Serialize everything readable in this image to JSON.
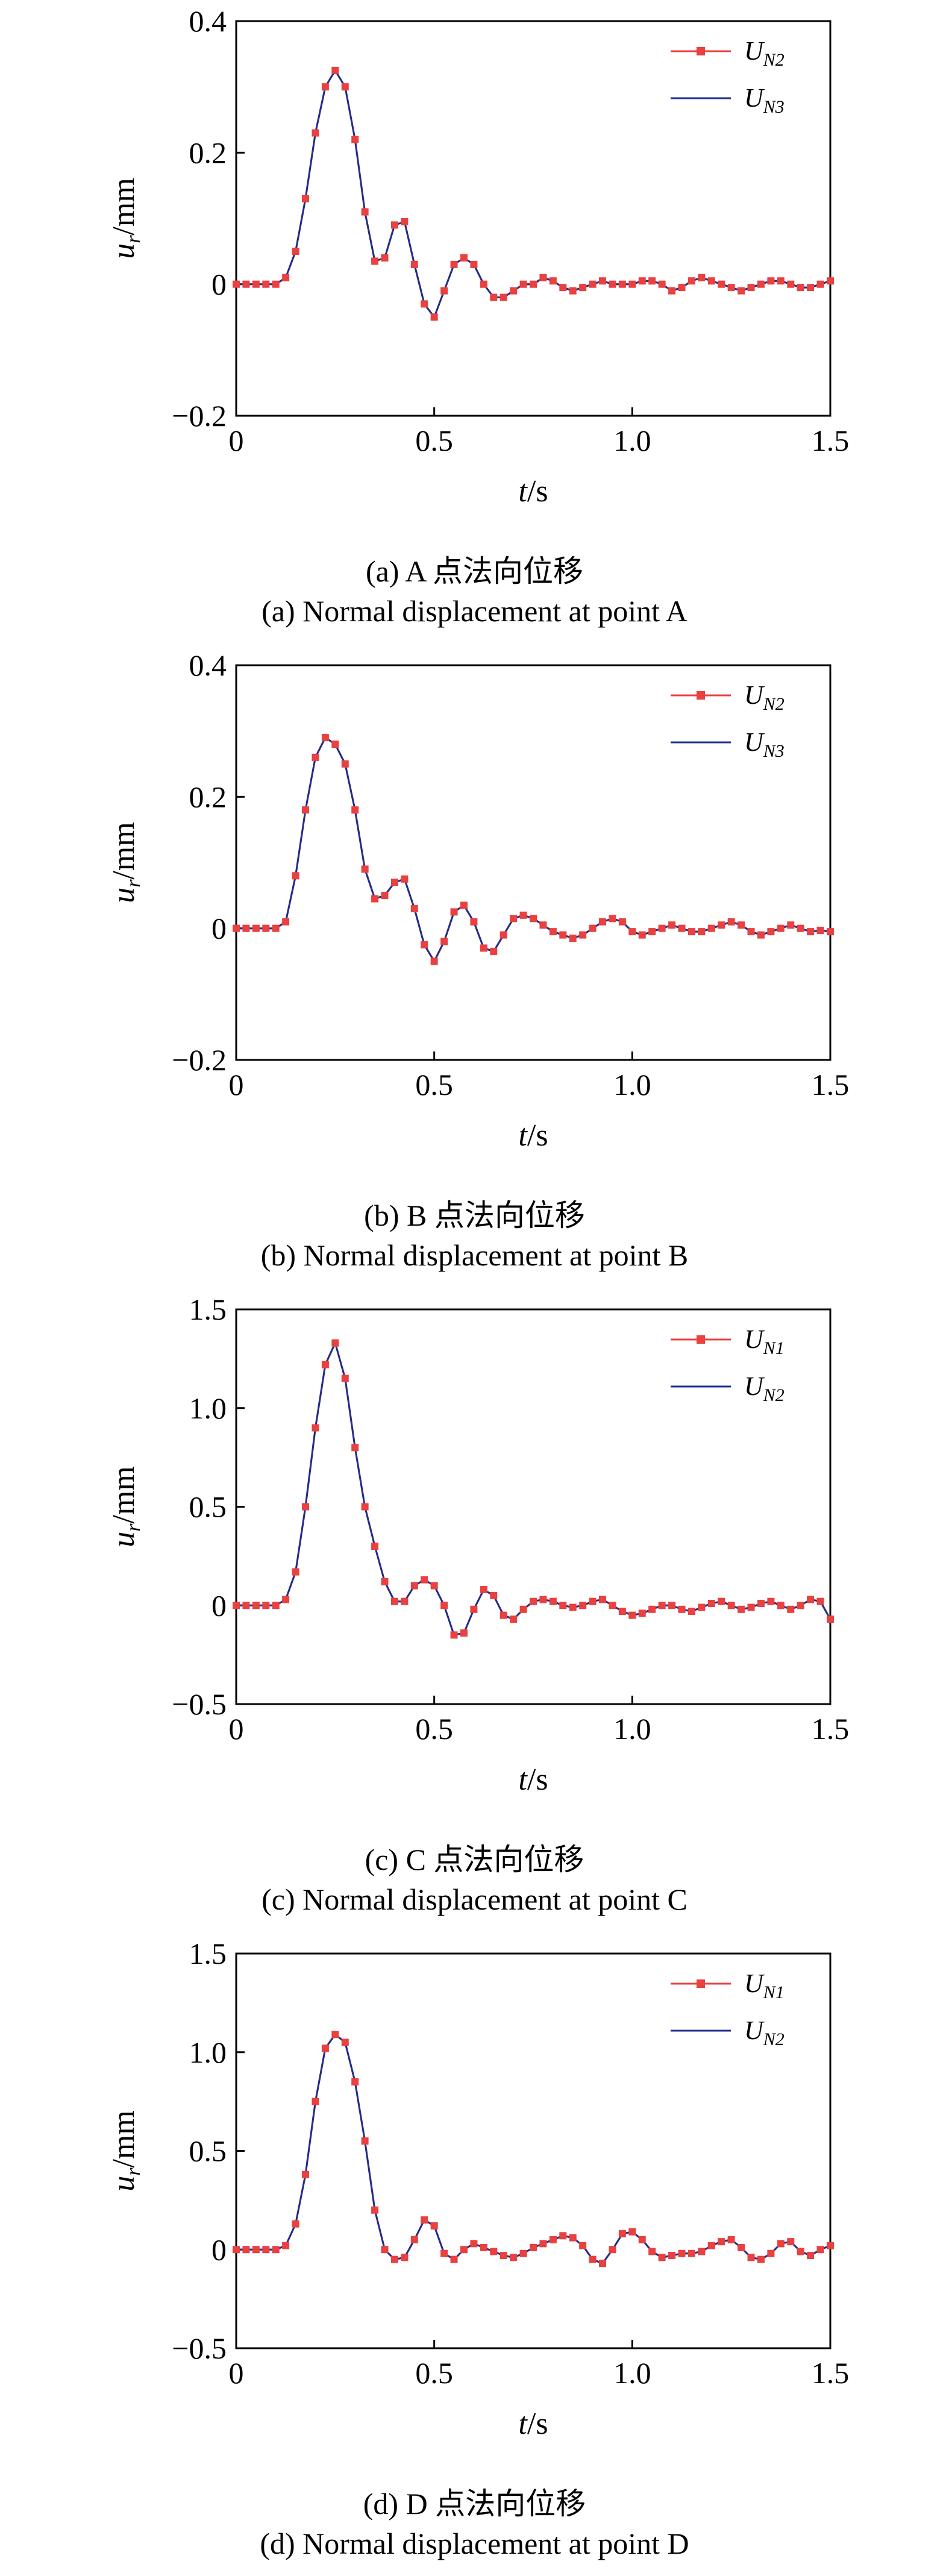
{
  "chart_data": [
    {
      "type": "line",
      "xlabel": "t/s",
      "ylabel": "u_r/mm",
      "xlim": [
        0,
        1.5
      ],
      "ylim": [
        -0.2,
        0.4
      ],
      "xticks": [
        "0",
        "0.5",
        "1.0",
        "1.5"
      ],
      "yticks": [
        "−0.2",
        "0",
        "0.2",
        "0.4"
      ],
      "legend": "top-right",
      "caption_cn": "(a) A 点法向位移",
      "caption_en": "(a) Normal displacement at point A",
      "series": [
        {
          "name": "U_N2",
          "color": "#e8413f",
          "marker": "square"
        },
        {
          "name": "U_N3",
          "color": "#1f2e8c",
          "marker": "none"
        }
      ],
      "x": [
        0,
        0.025,
        0.05,
        0.075,
        0.1,
        0.125,
        0.15,
        0.175,
        0.2,
        0.225,
        0.25,
        0.275,
        0.3,
        0.325,
        0.35,
        0.375,
        0.4,
        0.425,
        0.45,
        0.475,
        0.5,
        0.525,
        0.55,
        0.575,
        0.6,
        0.625,
        0.65,
        0.675,
        0.7,
        0.725,
        0.75,
        0.775,
        0.8,
        0.825,
        0.85,
        0.875,
        0.9,
        0.925,
        0.95,
        0.975,
        1.0,
        1.025,
        1.05,
        1.075,
        1.1,
        1.125,
        1.15,
        1.175,
        1.2,
        1.225,
        1.25,
        1.275,
        1.3,
        1.325,
        1.35,
        1.375,
        1.4,
        1.425,
        1.45,
        1.475,
        1.5
      ],
      "y": [
        0,
        0,
        0,
        0,
        0,
        0.01,
        0.05,
        0.13,
        0.23,
        0.3,
        0.325,
        0.3,
        0.22,
        0.11,
        0.035,
        0.04,
        0.09,
        0.095,
        0.03,
        -0.03,
        -0.05,
        -0.01,
        0.03,
        0.04,
        0.03,
        0.0,
        -0.02,
        -0.02,
        -0.01,
        0.0,
        0.0,
        0.01,
        0.005,
        -0.005,
        -0.01,
        -0.005,
        0.0,
        0.005,
        0.0,
        0.0,
        0.0,
        0.005,
        0.005,
        0.0,
        -0.01,
        -0.005,
        0.005,
        0.01,
        0.005,
        0.0,
        -0.005,
        -0.01,
        -0.005,
        0.0,
        0.005,
        0.005,
        0.0,
        -0.005,
        -0.005,
        0.0,
        0.005
      ]
    },
    {
      "type": "line",
      "xlabel": "t/s",
      "ylabel": "u_r/mm",
      "xlim": [
        0,
        1.5
      ],
      "ylim": [
        -0.2,
        0.4
      ],
      "xticks": [
        "0",
        "0.5",
        "1.0",
        "1.5"
      ],
      "yticks": [
        "−0.2",
        "0",
        "0.2",
        "0.4"
      ],
      "legend": "top-right",
      "caption_cn": "(b) B 点法向位移",
      "caption_en": "(b) Normal displacement at point B",
      "series": [
        {
          "name": "U_N2",
          "color": "#e8413f",
          "marker": "square"
        },
        {
          "name": "U_N3",
          "color": "#1f2e8c",
          "marker": "none"
        }
      ],
      "x": [
        0,
        0.025,
        0.05,
        0.075,
        0.1,
        0.125,
        0.15,
        0.175,
        0.2,
        0.225,
        0.25,
        0.275,
        0.3,
        0.325,
        0.35,
        0.375,
        0.4,
        0.425,
        0.45,
        0.475,
        0.5,
        0.525,
        0.55,
        0.575,
        0.6,
        0.625,
        0.65,
        0.675,
        0.7,
        0.725,
        0.75,
        0.775,
        0.8,
        0.825,
        0.85,
        0.875,
        0.9,
        0.925,
        0.95,
        0.975,
        1.0,
        1.025,
        1.05,
        1.075,
        1.1,
        1.125,
        1.15,
        1.175,
        1.2,
        1.225,
        1.25,
        1.275,
        1.3,
        1.325,
        1.35,
        1.375,
        1.4,
        1.425,
        1.45,
        1.475,
        1.5
      ],
      "y": [
        0,
        0,
        0,
        0,
        0,
        0.01,
        0.08,
        0.18,
        0.26,
        0.29,
        0.28,
        0.25,
        0.18,
        0.09,
        0.045,
        0.05,
        0.07,
        0.075,
        0.03,
        -0.025,
        -0.05,
        -0.02,
        0.025,
        0.035,
        0.01,
        -0.03,
        -0.035,
        -0.01,
        0.015,
        0.02,
        0.015,
        0.005,
        -0.005,
        -0.01,
        -0.015,
        -0.01,
        0.0,
        0.01,
        0.015,
        0.01,
        -0.005,
        -0.01,
        -0.005,
        0.0,
        0.005,
        0.0,
        -0.005,
        -0.005,
        0.0,
        0.005,
        0.01,
        0.005,
        -0.005,
        -0.01,
        -0.005,
        0.0,
        0.005,
        0.0,
        -0.005,
        -0.003,
        -0.005
      ]
    },
    {
      "type": "line",
      "xlabel": "t/s",
      "ylabel": "u_r/mm",
      "xlim": [
        0,
        1.5
      ],
      "ylim": [
        -0.5,
        1.5
      ],
      "xticks": [
        "0",
        "0.5",
        "1.0",
        "1.5"
      ],
      "yticks": [
        "−0.5",
        "0",
        "0.5",
        "1.0",
        "1.5"
      ],
      "legend": "top-right",
      "caption_cn": "(c) C 点法向位移",
      "caption_en": "(c) Normal displacement at point C",
      "series": [
        {
          "name": "U_N1",
          "color": "#e8413f",
          "marker": "square"
        },
        {
          "name": "U_N2",
          "color": "#1f2e8c",
          "marker": "none"
        }
      ],
      "x": [
        0,
        0.025,
        0.05,
        0.075,
        0.1,
        0.125,
        0.15,
        0.175,
        0.2,
        0.225,
        0.25,
        0.275,
        0.3,
        0.325,
        0.35,
        0.375,
        0.4,
        0.425,
        0.45,
        0.475,
        0.5,
        0.525,
        0.55,
        0.575,
        0.6,
        0.625,
        0.65,
        0.675,
        0.7,
        0.725,
        0.75,
        0.775,
        0.8,
        0.825,
        0.85,
        0.875,
        0.9,
        0.925,
        0.95,
        0.975,
        1.0,
        1.025,
        1.05,
        1.075,
        1.1,
        1.125,
        1.15,
        1.175,
        1.2,
        1.225,
        1.25,
        1.275,
        1.3,
        1.325,
        1.35,
        1.375,
        1.4,
        1.425,
        1.45,
        1.475,
        1.5
      ],
      "y": [
        0,
        0,
        0,
        0,
        0,
        0.03,
        0.17,
        0.5,
        0.9,
        1.22,
        1.33,
        1.15,
        0.8,
        0.5,
        0.3,
        0.12,
        0.02,
        0.02,
        0.1,
        0.13,
        0.1,
        0.0,
        -0.15,
        -0.14,
        -0.02,
        0.08,
        0.05,
        -0.05,
        -0.07,
        -0.02,
        0.02,
        0.03,
        0.02,
        0.0,
        -0.01,
        0.0,
        0.02,
        0.03,
        0.0,
        -0.03,
        -0.05,
        -0.04,
        -0.02,
        0.0,
        0.0,
        -0.02,
        -0.03,
        -0.01,
        0.01,
        0.02,
        0.0,
        -0.02,
        -0.01,
        0.01,
        0.02,
        0.0,
        -0.02,
        0.0,
        0.03,
        0.02,
        -0.07
      ]
    },
    {
      "type": "line",
      "xlabel": "t/s",
      "ylabel": "u_r/mm",
      "xlim": [
        0,
        1.5
      ],
      "ylim": [
        -0.5,
        1.5
      ],
      "xticks": [
        "0",
        "0.5",
        "1.0",
        "1.5"
      ],
      "yticks": [
        "−0.5",
        "0",
        "0.5",
        "1.0",
        "1.5"
      ],
      "legend": "top-right",
      "caption_cn": "(d) D 点法向位移",
      "caption_en": "(d) Normal displacement at point D",
      "series": [
        {
          "name": "U_N1",
          "color": "#e8413f",
          "marker": "square"
        },
        {
          "name": "U_N2",
          "color": "#1f2e8c",
          "marker": "none"
        }
      ],
      "x": [
        0,
        0.025,
        0.05,
        0.075,
        0.1,
        0.125,
        0.15,
        0.175,
        0.2,
        0.225,
        0.25,
        0.275,
        0.3,
        0.325,
        0.35,
        0.375,
        0.4,
        0.425,
        0.45,
        0.475,
        0.5,
        0.525,
        0.55,
        0.575,
        0.6,
        0.625,
        0.65,
        0.675,
        0.7,
        0.725,
        0.75,
        0.775,
        0.8,
        0.825,
        0.85,
        0.875,
        0.9,
        0.925,
        0.95,
        0.975,
        1.0,
        1.025,
        1.05,
        1.075,
        1.1,
        1.125,
        1.15,
        1.175,
        1.2,
        1.225,
        1.25,
        1.275,
        1.3,
        1.325,
        1.35,
        1.375,
        1.4,
        1.425,
        1.45,
        1.475,
        1.5
      ],
      "y": [
        0,
        0,
        0,
        0,
        0,
        0.02,
        0.13,
        0.38,
        0.75,
        1.02,
        1.09,
        1.05,
        0.85,
        0.55,
        0.2,
        0.0,
        -0.05,
        -0.04,
        0.05,
        0.15,
        0.12,
        -0.02,
        -0.05,
        0.0,
        0.03,
        0.01,
        -0.01,
        -0.03,
        -0.04,
        -0.02,
        0.01,
        0.03,
        0.05,
        0.07,
        0.06,
        0.02,
        -0.05,
        -0.07,
        0.0,
        0.08,
        0.09,
        0.05,
        -0.01,
        -0.04,
        -0.03,
        -0.02,
        -0.02,
        -0.01,
        0.02,
        0.04,
        0.05,
        0.01,
        -0.04,
        -0.05,
        -0.02,
        0.03,
        0.04,
        -0.01,
        -0.03,
        0.0,
        0.02
      ]
    }
  ]
}
